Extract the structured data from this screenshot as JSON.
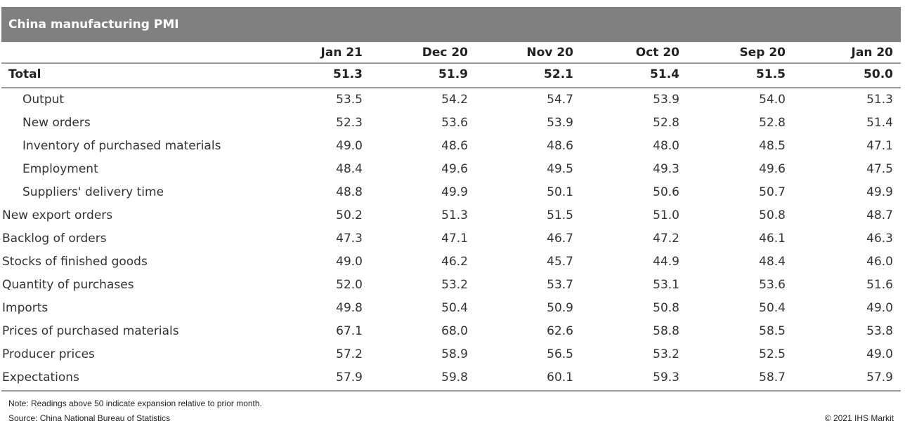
{
  "header": {
    "title": "China manufacturing PMI"
  },
  "table": {
    "columns": [
      "Jan 21",
      "Dec 20",
      "Nov 20",
      "Oct 20",
      "Sep 20",
      "Jan 20"
    ],
    "total": {
      "label": "Total",
      "values": [
        "51.3",
        "51.9",
        "52.1",
        "51.4",
        "51.5",
        "50.0"
      ]
    },
    "total_components": [
      {
        "label": "Output",
        "values": [
          "53.5",
          "54.2",
          "54.7",
          "53.9",
          "54.0",
          "51.3"
        ]
      },
      {
        "label": "New orders",
        "values": [
          "52.3",
          "53.6",
          "53.9",
          "52.8",
          "52.8",
          "51.4"
        ]
      },
      {
        "label": "Inventory of purchased materials",
        "values": [
          "49.0",
          "48.6",
          "48.6",
          "48.0",
          "48.5",
          "47.1"
        ]
      },
      {
        "label": "Employment",
        "values": [
          "48.4",
          "49.6",
          "49.5",
          "49.3",
          "49.6",
          "47.5"
        ]
      },
      {
        "label": "Suppliers' delivery time",
        "values": [
          "48.8",
          "49.9",
          "50.1",
          "50.6",
          "50.7",
          "49.9"
        ]
      }
    ],
    "rows": [
      {
        "label": "New export orders",
        "values": [
          "50.2",
          "51.3",
          "51.5",
          "51.0",
          "50.8",
          "48.7"
        ]
      },
      {
        "label": "Backlog of orders",
        "values": [
          "47.3",
          "47.1",
          "46.7",
          "47.2",
          "46.1",
          "46.3"
        ]
      },
      {
        "label": "Stocks of finished goods",
        "values": [
          "49.0",
          "46.2",
          "45.7",
          "44.9",
          "48.4",
          "46.0"
        ]
      },
      {
        "label": "Quantity of purchases",
        "values": [
          "52.0",
          "53.2",
          "53.7",
          "53.1",
          "53.6",
          "51.6"
        ]
      },
      {
        "label": "Imports",
        "values": [
          "49.8",
          "50.4",
          "50.9",
          "50.8",
          "50.4",
          "49.0"
        ]
      },
      {
        "label": "Prices of purchased materials",
        "values": [
          "67.1",
          "68.0",
          "62.6",
          "58.8",
          "58.5",
          "53.8"
        ]
      },
      {
        "label": "Producer prices",
        "values": [
          "57.2",
          "58.9",
          "56.5",
          "53.2",
          "52.5",
          "49.0"
        ]
      },
      {
        "label": "Expectations",
        "values": [
          "57.9",
          "59.8",
          "60.1",
          "59.3",
          "58.7",
          "57.9"
        ]
      }
    ]
  },
  "footer": {
    "note": "Note: Readings above 50 indicate expansion relative to prior month.",
    "source": "Source: China National Bureau of Statistics",
    "copyright": "© 2021 IHS Markit"
  }
}
